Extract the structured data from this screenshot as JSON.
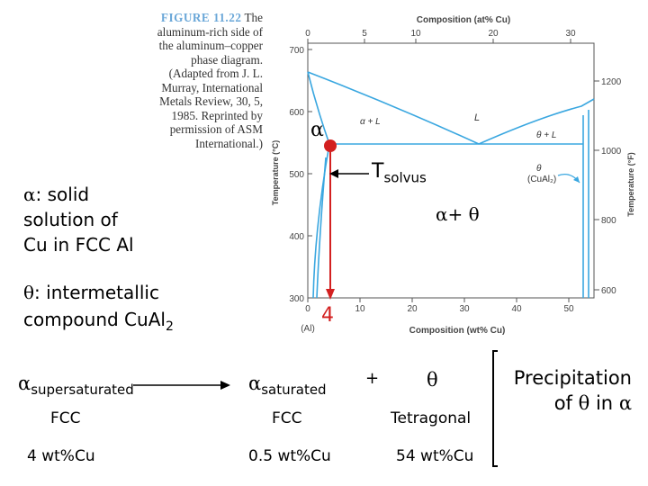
{
  "caption": {
    "figure_label": "FIGURE 11.22",
    "lines": [
      "The",
      "aluminum-rich side of",
      "the aluminum–copper",
      "phase diagram.",
      "(Adapted from J. L.",
      "Murray, International",
      "Metals Review, 30, 5,",
      "1985. Reprinted by",
      "permission of ASM",
      "International.)"
    ]
  },
  "chart": {
    "top_axis_label": "Composition (at% Cu)",
    "top_ticks": [
      "0",
      "5",
      "10",
      "20",
      "30"
    ],
    "bottom_axis_label": "Composition (wt% Cu)",
    "bottom_ticks": [
      "10",
      "20",
      "30",
      "40",
      "50"
    ],
    "bottom_zero": "0",
    "bottom_zero_sub": "(Al)",
    "left_axis_label": "Temperature (°C)",
    "left_ticks": [
      "700",
      "600",
      "500",
      "400",
      "300"
    ],
    "right_axis_label": "Temperature (°F)",
    "right_ticks": [
      "1200",
      "1000",
      "800",
      "600"
    ],
    "region_alpha_l": "α + L",
    "region_l": "L",
    "region_theta_l": "θ + L",
    "theta_label": "θ",
    "theta_formula": "(CuAl₂)"
  },
  "annotations": {
    "alpha_label": "α",
    "tsolvus": "T",
    "tsolvus_sub": "solvus",
    "alpha_theta": "α+ θ",
    "composition_marker": "4"
  },
  "definitions": {
    "alpha_symbol": "α",
    "alpha_text_1": ": solid",
    "alpha_text_2": "solution of",
    "alpha_text_3": "Cu in FCC Al",
    "theta_symbol": "θ",
    "theta_text_1": ": intermetallic",
    "theta_text_2a": "compound CuAl",
    "theta_text_2b": "2"
  },
  "reaction": {
    "start_symbol": "α",
    "start_sub": "supersaturated",
    "start_structure": "FCC",
    "start_comp": "4 wt%Cu",
    "mid_symbol": "α",
    "mid_sub": "saturated",
    "mid_structure": "FCC",
    "mid_comp": "0.5 wt%Cu",
    "plus": "+",
    "end_symbol": "θ",
    "end_structure": "Tetragonal",
    "end_comp": "54 wt%Cu",
    "note_line1": "Precipitation",
    "note_line2_a": "of",
    "note_theta": "θ",
    "note_line2_b": "in",
    "note_alpha": "α"
  },
  "colors": {
    "phase_line": "#3aa7e0",
    "grid": "#9cc9e8",
    "marker": "#d32020",
    "caption_accent": "#6aa7d8"
  }
}
